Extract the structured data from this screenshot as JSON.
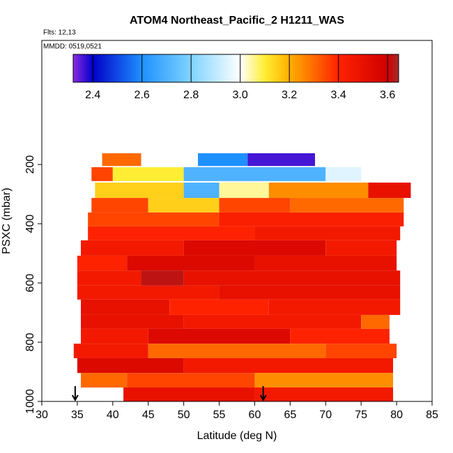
{
  "chart_data": {
    "type": "heatmap",
    "title": "ATOM4 Northeast_Pacific_2 H1211_WAS",
    "subtitles": [
      "Flts: 12,13",
      "MMDD: 0519,0521"
    ],
    "xlabel": "Latitude (deg N)",
    "ylabel": "PSXC (mbar)",
    "xlim": [
      30,
      85
    ],
    "xticks": [
      30,
      35,
      40,
      45,
      50,
      55,
      60,
      65,
      70,
      75,
      80,
      85
    ],
    "ylim": [
      1000,
      -219
    ],
    "yticks": [
      200,
      400,
      600,
      800,
      1000
    ],
    "clim": [
      2.32,
      3.645
    ],
    "cticks": [
      2.4,
      2.6,
      2.8,
      {
        "value": 3,
        "label": "3.0"
      },
      3.2,
      3.4,
      3.6
    ],
    "colorscale": {
      "values": [
        2.32,
        2.4,
        2.6,
        2.8,
        3.0,
        3.1,
        3.2,
        3.4,
        3.6,
        3.645
      ],
      "colors": [
        "#8a2be2",
        "#0000c8",
        "#1e90ff",
        "#7fd4ff",
        "#ffffff",
        "#ffee33",
        "#ffb000",
        "#ff2200",
        "#d00000",
        "#a52a2a"
      ]
    },
    "markers_lat": [
      34.7,
      61.2
    ],
    "rows": [
      {
        "psxc": [
          162,
          205
        ],
        "segments": [
          {
            "lat": [
              38.5,
              44
            ],
            "value": 3.3
          },
          {
            "lat": [
              44,
              52
            ],
            "value": 3.0
          },
          {
            "lat": [
              52,
              59
            ],
            "value": 2.6
          },
          {
            "lat": [
              59,
              68.5
            ],
            "value": 2.36
          }
        ]
      },
      {
        "psxc": [
          209,
          256
        ],
        "segments": [
          {
            "lat": [
              37,
              40
            ],
            "value": 3.35
          },
          {
            "lat": [
              40,
              50
            ],
            "value": 3.1
          },
          {
            "lat": [
              50,
              70
            ],
            "value": 2.7
          },
          {
            "lat": [
              70,
              75
            ],
            "value": 2.95
          }
        ]
      },
      {
        "psxc": [
          261,
          313
        ],
        "segments": [
          {
            "lat": [
              37.5,
              50
            ],
            "value": 3.15
          },
          {
            "lat": [
              50,
              55
            ],
            "value": 2.7
          },
          {
            "lat": [
              55,
              62
            ],
            "value": 3.05
          },
          {
            "lat": [
              62,
              76
            ],
            "value": 3.25
          },
          {
            "lat": [
              76,
              82
            ],
            "value": 3.5
          }
        ]
      },
      {
        "psxc": [
          313,
          362
        ],
        "segments": [
          {
            "lat": [
              37,
              45
            ],
            "value": 3.35
          },
          {
            "lat": [
              45,
              55
            ],
            "value": 3.15
          },
          {
            "lat": [
              55,
              65
            ],
            "value": 3.35
          },
          {
            "lat": [
              65,
              81
            ],
            "value": 3.3
          }
        ]
      },
      {
        "psxc": [
          362,
          409
        ],
        "segments": [
          {
            "lat": [
              36.5,
              55
            ],
            "value": 3.35
          },
          {
            "lat": [
              55,
              81
            ],
            "value": 3.42
          }
        ]
      },
      {
        "psxc": [
          409,
          456
        ],
        "segments": [
          {
            "lat": [
              36.5,
              60
            ],
            "value": 3.4
          },
          {
            "lat": [
              60,
              80.5
            ],
            "value": 3.45
          }
        ]
      },
      {
        "psxc": [
          456,
          508
        ],
        "segments": [
          {
            "lat": [
              35.5,
              50
            ],
            "value": 3.45
          },
          {
            "lat": [
              50,
              70
            ],
            "value": 3.55
          },
          {
            "lat": [
              70,
              80
            ],
            "value": 3.45
          }
        ]
      },
      {
        "psxc": [
          508,
          558
        ],
        "segments": [
          {
            "lat": [
              35,
              42
            ],
            "value": 3.4
          },
          {
            "lat": [
              42,
              60
            ],
            "value": 3.55
          },
          {
            "lat": [
              60,
              80
            ],
            "value": 3.5
          }
        ]
      },
      {
        "psxc": [
          558,
          609
        ],
        "segments": [
          {
            "lat": [
              35,
              44
            ],
            "value": 3.45
          },
          {
            "lat": [
              44,
              50
            ],
            "value": 3.62
          },
          {
            "lat": [
              50,
              80.5
            ],
            "value": 3.5
          }
        ]
      },
      {
        "psxc": [
          609,
          656
        ],
        "segments": [
          {
            "lat": [
              35,
              55
            ],
            "value": 3.45
          },
          {
            "lat": [
              55,
              80.5
            ],
            "value": 3.5
          }
        ]
      },
      {
        "psxc": [
          656,
          708
        ],
        "segments": [
          {
            "lat": [
              35.5,
              48
            ],
            "value": 3.5
          },
          {
            "lat": [
              48,
              62
            ],
            "value": 3.4
          },
          {
            "lat": [
              62,
              80.5
            ],
            "value": 3.45
          }
        ]
      },
      {
        "psxc": [
          708,
          755
        ],
        "segments": [
          {
            "lat": [
              35.5,
              50
            ],
            "value": 3.5
          },
          {
            "lat": [
              50,
              75
            ],
            "value": 3.45
          },
          {
            "lat": [
              75,
              79
            ],
            "value": 3.3
          }
        ]
      },
      {
        "psxc": [
          755,
          805
        ],
        "segments": [
          {
            "lat": [
              35.5,
              45
            ],
            "value": 3.45
          },
          {
            "lat": [
              45,
              65
            ],
            "value": 3.55
          },
          {
            "lat": [
              65,
              79
            ],
            "value": 3.4
          }
        ]
      },
      {
        "psxc": [
          805,
          854
        ],
        "segments": [
          {
            "lat": [
              34.5,
              45
            ],
            "value": 3.45
          },
          {
            "lat": [
              45,
              70
            ],
            "value": 3.3
          },
          {
            "lat": [
              70,
              80
            ],
            "value": 3.35
          }
        ]
      },
      {
        "psxc": [
          854,
          904
        ],
        "segments": [
          {
            "lat": [
              35,
              50
            ],
            "value": 3.55
          },
          {
            "lat": [
              50,
              79.5
            ],
            "value": 3.45
          }
        ]
      },
      {
        "psxc": [
          904,
          953
        ],
        "segments": [
          {
            "lat": [
              35.5,
              42
            ],
            "value": 3.3
          },
          {
            "lat": [
              42,
              60
            ],
            "value": 3.35
          },
          {
            "lat": [
              60,
              79.5
            ],
            "value": 3.25
          }
        ]
      },
      {
        "psxc": [
          953,
          1000
        ],
        "segments": [
          {
            "lat": [
              41.5,
              60
            ],
            "value": 3.5
          },
          {
            "lat": [
              60,
              79.5
            ],
            "value": 3.45
          }
        ]
      }
    ]
  }
}
